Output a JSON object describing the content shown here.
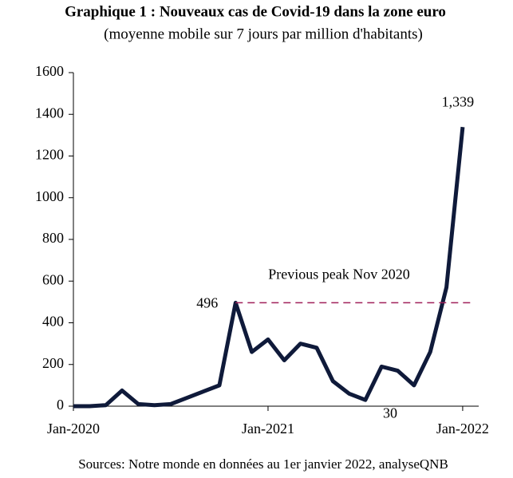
{
  "chart_data": {
    "type": "line",
    "title": "Graphique 1 : Nouveaux cas de Covid-19 dans la zone euro",
    "subtitle": "(moyenne mobile sur 7 jours par million d'habitants)",
    "source": "Sources: Notre monde en données au 1er janvier 2022, analyseQNB",
    "annotation": "Previous peak Nov 2020",
    "x": [
      "Jan-2020",
      "Feb-2020",
      "Mar-2020",
      "Apr-2020",
      "May-2020",
      "Jun-2020",
      "Jul-2020",
      "Aug-2020",
      "Sep-2020",
      "Oct-2020",
      "Nov-2020",
      "Dec-2020",
      "Jan-2021",
      "Feb-2021",
      "Mar-2021",
      "Apr-2021",
      "May-2021",
      "Jun-2021",
      "Jul-2021",
      "Aug-2021",
      "Sep-2021",
      "Oct-2021",
      "Nov-2021",
      "Dec-2021",
      "Jan-2022"
    ],
    "series": [
      {
        "name": "Nouveaux cas",
        "color": "#0f1a3a",
        "values": [
          0,
          0,
          5,
          75,
          10,
          5,
          10,
          40,
          70,
          100,
          496,
          260,
          320,
          220,
          300,
          280,
          120,
          60,
          30,
          190,
          170,
          100,
          260,
          570,
          1339
        ],
        "value_labels": [
          null,
          null,
          null,
          null,
          null,
          null,
          null,
          null,
          null,
          null,
          "496",
          null,
          null,
          null,
          null,
          null,
          null,
          null,
          "30",
          null,
          null,
          null,
          null,
          null,
          "1,339"
        ]
      }
    ],
    "reference_color": "#a0205a",
    "xticks": [
      "Jan-2020",
      "Jan-2021",
      "Jan-2022"
    ],
    "ylim": [
      0,
      1600
    ],
    "yticks": [
      0,
      200,
      400,
      600,
      800,
      1000,
      1200,
      1400,
      1600
    ]
  }
}
